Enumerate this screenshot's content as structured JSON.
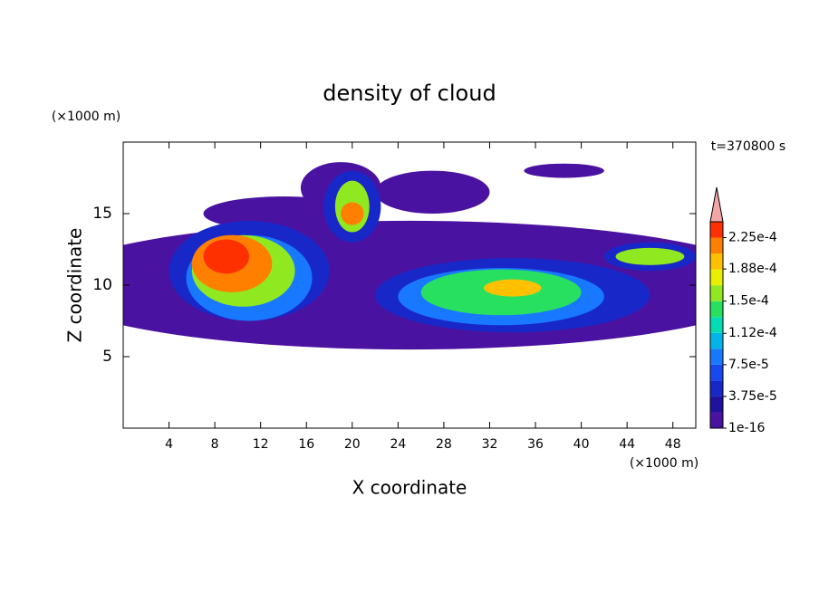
{
  "chart_data": {
    "type": "contour",
    "title": "density of cloud",
    "x_label": "X coordinate",
    "y_label": "Z coordinate",
    "x_unit": "(×1000 m)",
    "y_unit": "(×1000 m)",
    "time_label": "t=370800 s",
    "xlim": [
      0,
      50
    ],
    "ylim": [
      0,
      20
    ],
    "xticks": [
      4,
      8,
      12,
      16,
      20,
      24,
      28,
      32,
      36,
      40,
      44,
      48
    ],
    "yticks": [
      5,
      10,
      15
    ],
    "clim": [
      1e-16,
      0.00024375
    ],
    "colors": [
      "#4a12a0",
      "#20129c",
      "#1828c8",
      "#1848f0",
      "#1878ff",
      "#00b4e8",
      "#00dcb4",
      "#28e060",
      "#90e820",
      "#e8f000",
      "#ffc000",
      "#ff8000",
      "#ff3000"
    ],
    "over_color": "#f4a6a6",
    "cticks": [
      {
        "value": 1e-16,
        "label": "1e-16"
      },
      {
        "value": 3.75e-05,
        "label": "3.75e-5"
      },
      {
        "value": 7.5e-05,
        "label": "7.5e-5"
      },
      {
        "value": 0.000112,
        "label": "1.12e-4"
      },
      {
        "value": 0.00015,
        "label": "1.5e-4"
      },
      {
        "value": 0.000188,
        "label": "1.88e-4"
      },
      {
        "value": 0.000225,
        "label": "2.25e-4"
      }
    ],
    "blobs": [
      {
        "x": 25,
        "z": 10,
        "rx": 32,
        "rz": 4.5,
        "value": 1e-08
      },
      {
        "x": 19,
        "z": 16.8,
        "rx": 3.5,
        "rz": 1.8,
        "value": 1e-08
      },
      {
        "x": 14,
        "z": 15,
        "rx": 7,
        "rz": 1.2,
        "value": 1e-08
      },
      {
        "x": 27,
        "z": 16.5,
        "rx": 5,
        "rz": 1.5,
        "value": 1e-08
      },
      {
        "x": 38.5,
        "z": 18,
        "rx": 3.5,
        "rz": 0.5,
        "value": 1e-08
      },
      {
        "x": 11,
        "z": 11,
        "rx": 7,
        "rz": 3.5,
        "value": 4e-05
      },
      {
        "x": 34,
        "z": 9.3,
        "rx": 12,
        "rz": 2.6,
        "value": 4e-05
      },
      {
        "x": 20,
        "z": 15.5,
        "rx": 2.5,
        "rz": 2.5,
        "value": 4e-05
      },
      {
        "x": 46,
        "z": 12,
        "rx": 4,
        "rz": 1,
        "value": 4e-05
      },
      {
        "x": 11,
        "z": 10.5,
        "rx": 5.5,
        "rz": 3,
        "value": 9e-05
      },
      {
        "x": 33,
        "z": 9.2,
        "rx": 9,
        "rz": 2,
        "value": 9e-05
      },
      {
        "x": 10.5,
        "z": 11,
        "rx": 4.5,
        "rz": 2.5,
        "value": 0.00016
      },
      {
        "x": 33,
        "z": 9.5,
        "rx": 7,
        "rz": 1.6,
        "value": 0.00015
      },
      {
        "x": 20,
        "z": 15.5,
        "rx": 1.5,
        "rz": 1.8,
        "value": 0.00016
      },
      {
        "x": 46,
        "z": 12,
        "rx": 3,
        "rz": 0.6,
        "value": 0.00016
      },
      {
        "x": 9.5,
        "z": 11.5,
        "rx": 3.5,
        "rz": 2,
        "value": 0.00021
      },
      {
        "x": 9,
        "z": 12,
        "rx": 2,
        "rz": 1.2,
        "value": 0.00023
      },
      {
        "x": 20,
        "z": 15,
        "rx": 1,
        "rz": 0.8,
        "value": 0.00022
      },
      {
        "x": 34,
        "z": 9.8,
        "rx": 2.5,
        "rz": 0.6,
        "value": 0.00019
      }
    ]
  }
}
